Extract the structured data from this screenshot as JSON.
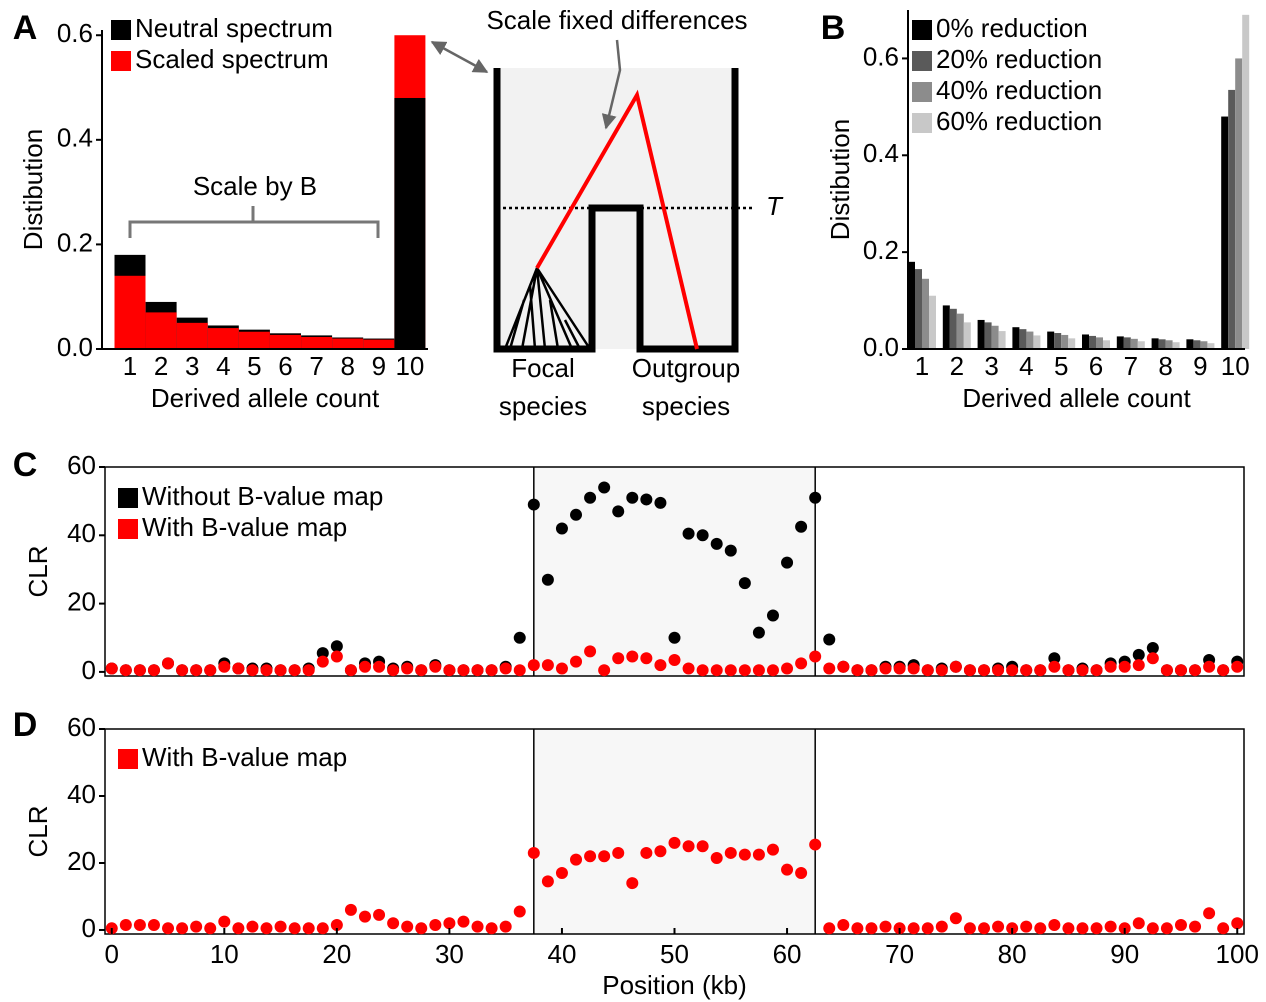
{
  "diagram": {
    "title": "Scale fixed differences",
    "threshold": "T",
    "labels": [
      [
        "Focal",
        "species"
      ],
      [
        "Outgroup",
        "species"
      ]
    ]
  },
  "chart_data": [
    {
      "type": "bar",
      "panel": "A",
      "bar_mode": "overlap",
      "xlabel": "Derived allele count",
      "ylabel": "Distibution",
      "annotation": "Scale by B",
      "categories": [
        "1",
        "2",
        "3",
        "4",
        "5",
        "6",
        "7",
        "8",
        "9",
        "10"
      ],
      "series": [
        {
          "name": "Neutral spectrum",
          "color": "#000000",
          "values": [
            0.18,
            0.09,
            0.06,
            0.045,
            0.037,
            0.03,
            0.026,
            0.022,
            0.02,
            0.48
          ]
        },
        {
          "name": "Scaled spectrum",
          "color": "#ff0000",
          "values": [
            0.14,
            0.07,
            0.05,
            0.04,
            0.033,
            0.027,
            0.023,
            0.02,
            0.018,
            0.6
          ]
        }
      ],
      "ylim": [
        0,
        0.61
      ],
      "yticks": [
        {
          "value": 0,
          "label": "0.0"
        },
        0.2,
        0.4,
        0.6
      ]
    },
    {
      "type": "bar",
      "panel": "B",
      "bar_mode": "group",
      "xlabel": "Derived allele count",
      "ylabel": "Distibution",
      "categories": [
        "1",
        "2",
        "3",
        "4",
        "5",
        "6",
        "7",
        "8",
        "9",
        "10"
      ],
      "series": [
        {
          "name": "0% reduction",
          "color": "#000000",
          "values": [
            0.18,
            0.09,
            0.06,
            0.045,
            0.036,
            0.03,
            0.026,
            0.022,
            0.02,
            0.48
          ]
        },
        {
          "name": "20% reduction",
          "color": "#5a5a5a",
          "values": [
            0.165,
            0.083,
            0.055,
            0.041,
            0.033,
            0.027,
            0.024,
            0.02,
            0.018,
            0.535
          ]
        },
        {
          "name": "40% reduction",
          "color": "#8c8c8c",
          "values": [
            0.145,
            0.073,
            0.048,
            0.036,
            0.029,
            0.024,
            0.021,
            0.018,
            0.016,
            0.6
          ]
        },
        {
          "name": "60% reduction",
          "color": "#c8c8c8",
          "values": [
            0.11,
            0.055,
            0.037,
            0.028,
            0.022,
            0.018,
            0.016,
            0.014,
            0.012,
            0.69
          ]
        }
      ],
      "ylim": [
        0,
        0.7
      ],
      "yticks": [
        {
          "value": 0,
          "label": "0.0"
        },
        0.2,
        0.4,
        0.6
      ]
    },
    {
      "type": "scatter",
      "panel": "C",
      "ylabel": "CLR",
      "highlight": [
        37.5,
        62.5
      ],
      "x": [
        0,
        1.25,
        2.5,
        3.75,
        5,
        6.25,
        7.5,
        8.75,
        10,
        11.25,
        12.5,
        13.75,
        15,
        16.25,
        17.5,
        18.75,
        20,
        21.25,
        22.5,
        23.75,
        25,
        26.25,
        27.5,
        28.75,
        30,
        31.25,
        32.5,
        33.75,
        35,
        36.25,
        37.5,
        38.75,
        40,
        41.25,
        42.5,
        43.75,
        45,
        46.25,
        47.5,
        48.75,
        50,
        51.25,
        52.5,
        53.75,
        55,
        56.25,
        57.5,
        58.75,
        60,
        61.25,
        62.5,
        63.75,
        65,
        66.25,
        67.5,
        68.75,
        70,
        71.25,
        72.5,
        73.75,
        75,
        76.25,
        77.5,
        78.75,
        80,
        81.25,
        82.5,
        83.75,
        85,
        86.25,
        87.5,
        88.75,
        90,
        91.25,
        92.5,
        93.75,
        95,
        96.25,
        97.5,
        98.75,
        100
      ],
      "series": [
        {
          "name": "Without B-value map",
          "color": "#000000",
          "values": [
            1,
            0.5,
            0.5,
            0.5,
            2.5,
            0.5,
            0.5,
            0.5,
            2.5,
            1,
            1,
            1,
            0.5,
            0.5,
            1,
            5.5,
            7.5,
            0.5,
            2.5,
            3,
            1,
            1.5,
            0.5,
            2,
            0.5,
            0.5,
            0.5,
            0.5,
            1.5,
            10,
            49,
            27,
            42,
            46,
            51,
            54,
            47,
            51,
            50.5,
            49.5,
            10,
            40.5,
            40,
            37.5,
            35.5,
            26,
            11.5,
            16.5,
            32,
            42.5,
            51,
            9.5,
            1.5,
            0.5,
            0.5,
            1.5,
            1.5,
            2,
            0.5,
            1,
            1.5,
            0.5,
            0.5,
            1,
            1.5,
            0.5,
            0.5,
            4,
            0.5,
            1,
            0.5,
            2.5,
            3,
            5,
            7,
            0.5,
            0.5,
            0.5,
            3.5,
            0.5,
            3
          ]
        },
        {
          "name": "With B-value map",
          "color": "#ff0000",
          "values": [
            1,
            0.5,
            0.5,
            0.5,
            2.5,
            0.5,
            0.5,
            0.5,
            1.5,
            1,
            0.5,
            0.5,
            0.5,
            0.5,
            0.5,
            3,
            4.5,
            0.5,
            1.5,
            1.5,
            0.5,
            1,
            0.5,
            1.5,
            0.5,
            0.5,
            0.5,
            0.5,
            1,
            0.5,
            2,
            2,
            1,
            3,
            6,
            0.5,
            4,
            4.5,
            4,
            2,
            3.5,
            1,
            0.5,
            0.5,
            0.5,
            0.5,
            0.5,
            0.5,
            1,
            2.5,
            4.5,
            1,
            1.5,
            0.5,
            0.5,
            1,
            1,
            1,
            0.5,
            0.5,
            1.5,
            0.5,
            0.5,
            0.5,
            0.5,
            0.5,
            0.5,
            1.5,
            0.5,
            0.5,
            0.5,
            1.5,
            1.5,
            2,
            4,
            0.5,
            0.5,
            0.5,
            1.5,
            0.5,
            1.5
          ]
        }
      ],
      "xlim": [
        -0.6,
        100.6
      ],
      "ylim": [
        -1.2,
        60
      ],
      "yticks": [
        0,
        20,
        40,
        60
      ]
    },
    {
      "type": "scatter",
      "panel": "D",
      "ylabel": "CLR",
      "xlabel": "Position (kb)",
      "highlight": [
        37.5,
        62.5
      ],
      "x": [
        0,
        1.25,
        2.5,
        3.75,
        5,
        6.25,
        7.5,
        8.75,
        10,
        11.25,
        12.5,
        13.75,
        15,
        16.25,
        17.5,
        18.75,
        20,
        21.25,
        22.5,
        23.75,
        25,
        26.25,
        27.5,
        28.75,
        30,
        31.25,
        32.5,
        33.75,
        35,
        36.25,
        37.5,
        38.75,
        40,
        41.25,
        42.5,
        43.75,
        45,
        46.25,
        47.5,
        48.75,
        50,
        51.25,
        52.5,
        53.75,
        55,
        56.25,
        57.5,
        58.75,
        60,
        61.25,
        62.5,
        63.75,
        65,
        66.25,
        67.5,
        68.75,
        70,
        71.25,
        72.5,
        73.75,
        75,
        76.25,
        77.5,
        78.75,
        80,
        81.25,
        82.5,
        83.75,
        85,
        86.25,
        87.5,
        88.75,
        90,
        91.25,
        92.5,
        93.75,
        95,
        96.25,
        97.5,
        98.75,
        100
      ],
      "series": [
        {
          "name": "With B-value map",
          "color": "#ff0000",
          "values": [
            0.5,
            1.5,
            1.5,
            1.5,
            0.5,
            0.5,
            1,
            0.5,
            2.5,
            0.5,
            1,
            0.5,
            1,
            0.5,
            0.5,
            0.5,
            1.5,
            6,
            4,
            4.5,
            2,
            1,
            0.5,
            1.5,
            2,
            2.5,
            1,
            0.5,
            1,
            5.5,
            23,
            14.5,
            17,
            21,
            22,
            22,
            23,
            14,
            23,
            23.5,
            26,
            25,
            25,
            21.5,
            23,
            22.5,
            22.5,
            24,
            18,
            17,
            25.5,
            0.5,
            1.5,
            0.5,
            0.5,
            1,
            0.5,
            0.5,
            0.5,
            1,
            3.5,
            0.5,
            0.5,
            1,
            0.5,
            1,
            0.5,
            1.5,
            0.5,
            0.5,
            0.5,
            1,
            0.5,
            2,
            0.5,
            0.5,
            1.5,
            1,
            5,
            0.5,
            2
          ]
        }
      ],
      "xlim": [
        -0.6,
        100.6
      ],
      "ylim": [
        -1.2,
        60
      ],
      "yticks": [
        0,
        20,
        40,
        60
      ],
      "xticks": [
        0,
        10,
        20,
        30,
        40,
        50,
        60,
        70,
        80,
        90,
        100
      ]
    }
  ]
}
